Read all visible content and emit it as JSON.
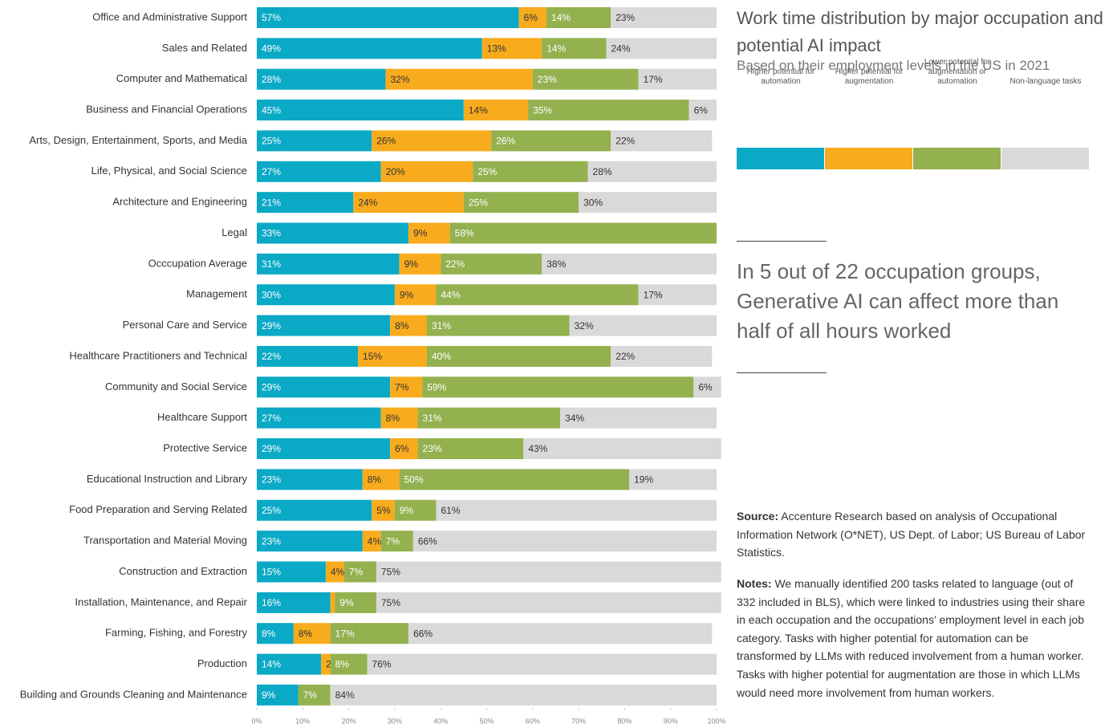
{
  "chart_data": {
    "type": "stacked_bar_horizontal",
    "title": "Work time distribution by major  occupation and potential AI impact",
    "subtitle": "Based on their employment levels in the US in 2021",
    "annotation": "In 5 out of 22 occupation  groups, Generative AI can affect more than half of all  hours worked",
    "source_label": "Source:",
    "source": "Accenture Research based on analysis of Occupational Information Network (O*NET), US Dept. of Labor; US Bureau of Labor  Statistics.",
    "notes_label": "Notes:",
    "notes": "We manually identified 200 tasks related to language (out of 332 included in BLS), which were linked to industries using their share in each occupation and the occupations’ employment level in each job category. Tasks with higher potential for automation can  be transformed by LLMs with reduced involvement from a human  worker. Tasks with higher potential for augmentation are those in  which LLMs would need more involvement from human workers.",
    "categories": [
      "Office and Administrative Support",
      "Sales and Related",
      "Computer and Mathematical",
      "Business and Financial Operations",
      "Arts, Design, Entertainment, Sports, and Media",
      "Life, Physical, and Social Science",
      "Architecture and Engineering",
      "Legal",
      "Occcupation Average",
      "Management",
      "Personal Care and Service",
      "Healthcare Practitioners and Technical",
      "Community and Social Service",
      "Healthcare Support",
      "Protective Service",
      "Educational Instruction and Library",
      "Food Preparation and Serving Related",
      "Transportation and Material Moving",
      "Construction and Extraction",
      "Installation, Maintenance, and Repair",
      "Farming, Fishing, and Forestry",
      "Production",
      "Building and Grounds Cleaning and Maintenance"
    ],
    "series": [
      {
        "name": "Higher potential for automation",
        "color": "#0aa9c6",
        "values": [
          57,
          49,
          28,
          45,
          25,
          27,
          21,
          33,
          31,
          30,
          29,
          22,
          29,
          27,
          29,
          23,
          25,
          23,
          15,
          16,
          8,
          14,
          9
        ],
        "value_labels": [
          "57%",
          "49%",
          "28%",
          "45%",
          "25%",
          "27%",
          "21%",
          "33%",
          "31%",
          "30%",
          "29%",
          "22%",
          "29%",
          "27%",
          "29%",
          "23%",
          "25%",
          "23%",
          "15%",
          "16%",
          "8%",
          "14%",
          "9%"
        ]
      },
      {
        "name": "Higher potential for augmentation",
        "color": "#f8ab1d",
        "values": [
          6,
          13,
          32,
          14,
          26,
          20,
          24,
          9,
          9,
          9,
          8,
          15,
          7,
          8,
          6,
          8,
          5,
          4,
          4,
          1,
          8,
          2,
          0
        ],
        "value_labels": [
          "6%",
          "13%",
          "32%",
          "14%",
          "26%",
          "20%",
          "24%",
          "9%",
          "9%",
          "9%",
          "8%",
          "15%",
          "7%",
          "8%",
          "6%",
          "8%",
          "5%",
          "4%",
          "4%",
          "1%",
          "8%",
          "2%",
          "0%"
        ]
      },
      {
        "name": "Lower potential for augmentation or automation",
        "color": "#93b14f",
        "values": [
          14,
          14,
          23,
          35,
          26,
          25,
          25,
          58,
          22,
          44,
          31,
          40,
          59,
          31,
          23,
          50,
          9,
          7,
          7,
          9,
          17,
          8,
          7
        ],
        "value_labels": [
          "14%",
          "14%",
          "23%",
          "35%",
          "26%",
          "25%",
          "25%",
          "58%",
          "22%",
          "44%",
          "31%",
          "40%",
          "59%",
          "31%",
          "23%",
          "50%",
          "9%",
          "7%",
          "7%",
          "9%",
          "17%",
          "8%",
          "7%"
        ]
      },
      {
        "name": "Non-language tasks",
        "color": "#d9d9d9",
        "values": [
          23,
          24,
          17,
          6,
          22,
          28,
          30,
          0,
          38,
          17,
          32,
          22,
          6,
          34,
          43,
          19,
          61,
          66,
          75,
          75,
          66,
          76,
          84
        ],
        "value_labels": [
          "23%",
          "24%",
          "17%",
          "6%",
          "22%",
          "28%",
          "30%",
          null,
          "38%",
          "17%",
          "32%",
          "22%",
          "6%",
          "34%",
          "43%",
          "19%",
          "61%",
          "66%",
          "75%",
          "75%",
          "66%",
          "76%",
          "84%"
        ]
      }
    ],
    "xlim": [
      0,
      100
    ],
    "xticks": [
      {
        "value": 0,
        "label": "0%"
      },
      {
        "value": 10,
        "label": "10%"
      },
      {
        "value": 20,
        "label": "20%"
      },
      {
        "value": 30,
        "label": "30%"
      },
      {
        "value": 40,
        "label": "40%"
      },
      {
        "value": 50,
        "label": "50%"
      },
      {
        "value": 60,
        "label": "60%"
      },
      {
        "value": 70,
        "label": "70%"
      },
      {
        "value": 80,
        "label": "80%"
      },
      {
        "value": 90,
        "label": "90%"
      },
      {
        "value": 100,
        "label": "100%"
      }
    ]
  }
}
